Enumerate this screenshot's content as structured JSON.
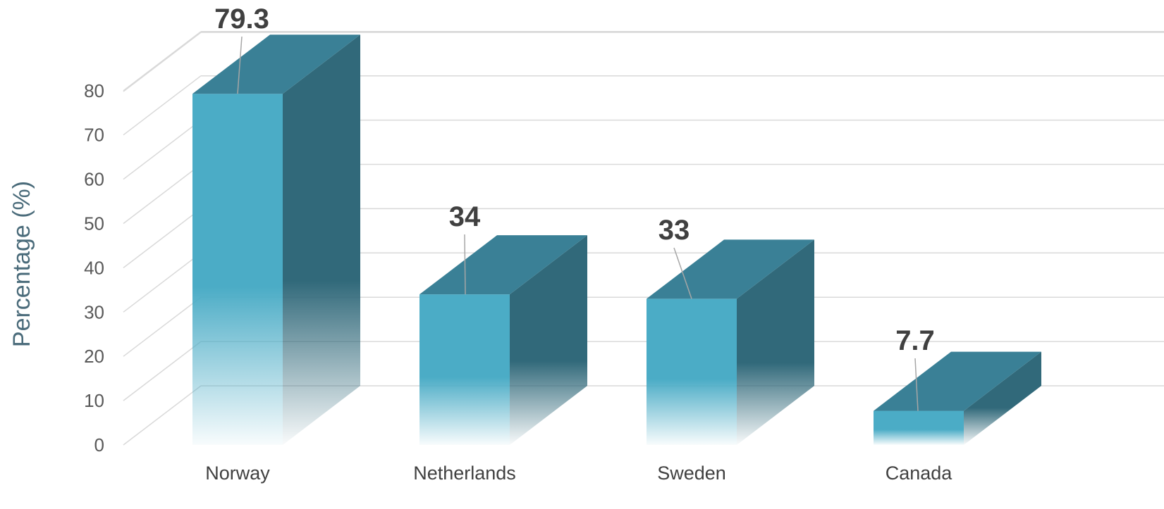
{
  "chart_data": {
    "type": "bar",
    "style": "3d-column",
    "categories": [
      "Norway",
      "Netherlands",
      "Sweden",
      "Canada"
    ],
    "values": [
      79.3,
      34,
      33,
      7.7
    ],
    "data_labels": [
      "79.3",
      "34",
      "33",
      "7.7"
    ],
    "ylabel": "Percentage (%)",
    "xlabel": "",
    "ylim": [
      0,
      80
    ],
    "yticks": [
      "0",
      "10",
      "20",
      "30",
      "40",
      "50",
      "60",
      "70",
      "80"
    ],
    "grid": true,
    "legend": "none",
    "colors": {
      "front": "#4bacc6",
      "side": "#31697a",
      "top": "#3a8096",
      "grid": "#d9d9d9"
    }
  }
}
